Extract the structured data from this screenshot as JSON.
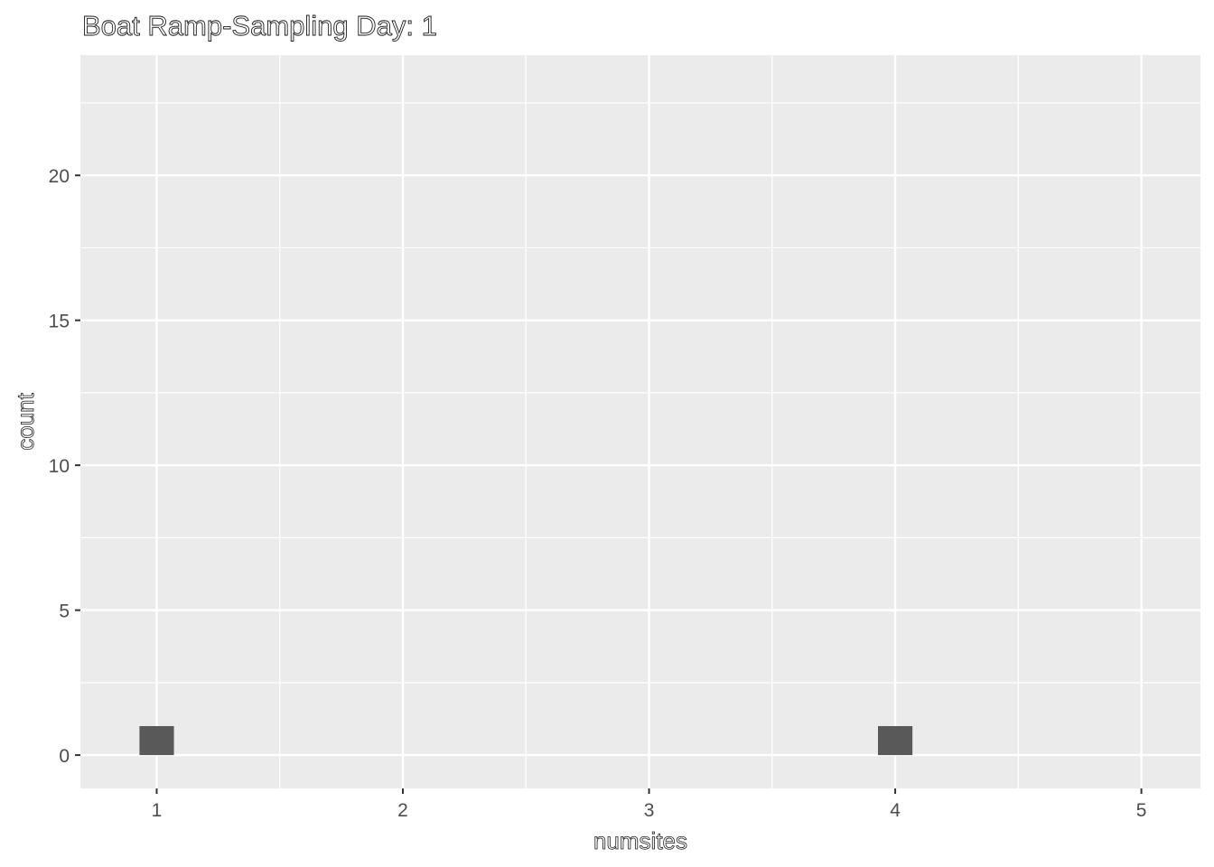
{
  "chart_data": {
    "type": "bar",
    "title": "Boat Ramp-Sampling Day: 1",
    "xlabel": "numsites",
    "ylabel": "count",
    "x": [
      1,
      4
    ],
    "values": [
      1,
      1
    ],
    "bar_width": 0.14,
    "xlim": [
      0.69,
      5.24
    ],
    "ylim": [
      -1.15,
      24.15
    ],
    "xticks": [
      1,
      2,
      3,
      4,
      5
    ],
    "yticks": [
      0,
      5,
      10,
      15,
      20
    ],
    "grid": true,
    "legend": "none",
    "colors": {
      "panel": "#ebebeb",
      "grid": "#ffffff",
      "bar": "#595959",
      "tick": "#333333"
    }
  }
}
